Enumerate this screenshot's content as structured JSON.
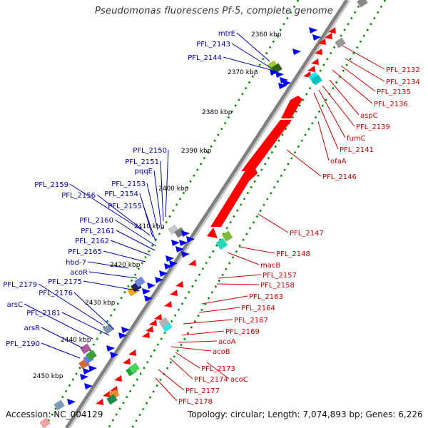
{
  "title": "Pseudomonas fluorescens Pf-5, complete genome",
  "footer": {
    "accession": "Accession: NC_004129",
    "stats": "Topology: circular; Length: 7,074,893 bp; Genes: 6,226"
  },
  "colors": {
    "backbone": "#808080",
    "forward_strand": "#0000ff",
    "reverse_strand": "#ff0000",
    "tick_dots": "#008800",
    "blue_label": "#0000aa",
    "red_label": "#cc0000"
  },
  "scale_labels": [
    "2360 kbp",
    "2370 kbp",
    "2380 kbp",
    "2390 kbp",
    "2400 kbp",
    "2410 kbp",
    "2420 kbp",
    "2430 kbp",
    "2440 kbp",
    "2450 kbp"
  ],
  "left_genes": [
    "mtrE",
    "PFL_2143",
    "PFL_2144",
    "PFL_2150",
    "PFL_2151",
    "pqqE",
    "PFL_2153",
    "PFL_2159",
    "PFL_2156",
    "PFL_2154",
    "PFL_2155",
    "PFL_2160",
    "PFL_2161",
    "PFL_2162",
    "PFL_2165",
    "hbd-7",
    "acoR",
    "PFL_2175",
    "PFL_2179",
    "PFL_2176",
    "arsC",
    "PFL_2181",
    "arsR",
    "PFL_2190"
  ],
  "right_genes": [
    "PFL_2132",
    "PFL_2134",
    "PFL_2135",
    "PFL_2136",
    "aspC",
    "PFL_2139",
    "fumC",
    "PFL_2141",
    "ofaA",
    "PFL_2146",
    "PFL_2147",
    "PFL_2148",
    "macB",
    "PFL_2157",
    "PFL_2158",
    "PFL_2163",
    "PFL_2164",
    "PFL_2167",
    "PFL_2169",
    "acoA",
    "acoB",
    "PFL_2173",
    "PFL_2174",
    "acoC",
    "PFL_2177",
    "PFL_2178"
  ]
}
